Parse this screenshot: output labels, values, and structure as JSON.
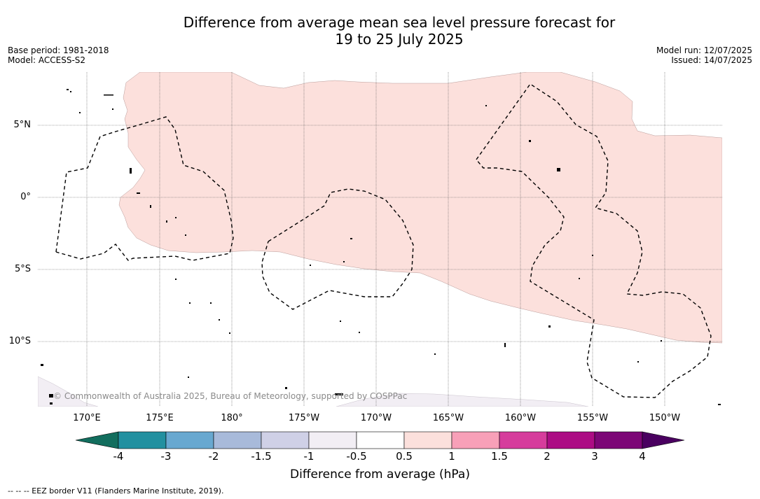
{
  "title_line1": "Difference from average mean sea level pressure forecast for",
  "title_line2": "19 to 25 July 2025",
  "meta_left": {
    "base_period": "Base period: 1981-2018",
    "model": "Model: ACCESS-S2"
  },
  "meta_right": {
    "model_run": "Model run: 12/07/2025",
    "issued": "Issued: 14/07/2025"
  },
  "copyright": "© Commonwealth of Australia 2025, Bureau of Meteorology, supported by COSPPac",
  "lon_labels": [
    "170°E",
    "175°E",
    "180°",
    "175°W",
    "170°W",
    "165°W",
    "160°W",
    "155°W",
    "150°W"
  ],
  "lat_labels": [
    "5°N",
    "0°",
    "5°S",
    "10°S"
  ],
  "colorbar": {
    "ticks": [
      "-4",
      "-3",
      "-2",
      "-1.5",
      "-1",
      "-0.5",
      "0.5",
      "1",
      "1.5",
      "2",
      "3",
      "4"
    ],
    "colors": [
      "#126e5e",
      "#2290a0",
      "#68a8d0",
      "#a8bada",
      "#cfd0e6",
      "#f2eef4",
      "#ffffff",
      "#fce0dc",
      "#f8a0b8",
      "#d63c9c",
      "#ac0c84",
      "#7c0676",
      "#4a0060"
    ],
    "title": "Difference from average (hPa)"
  },
  "footnote": "--  --  -- EEZ border V11 (Flanders Marine Institute, 2019)."
}
